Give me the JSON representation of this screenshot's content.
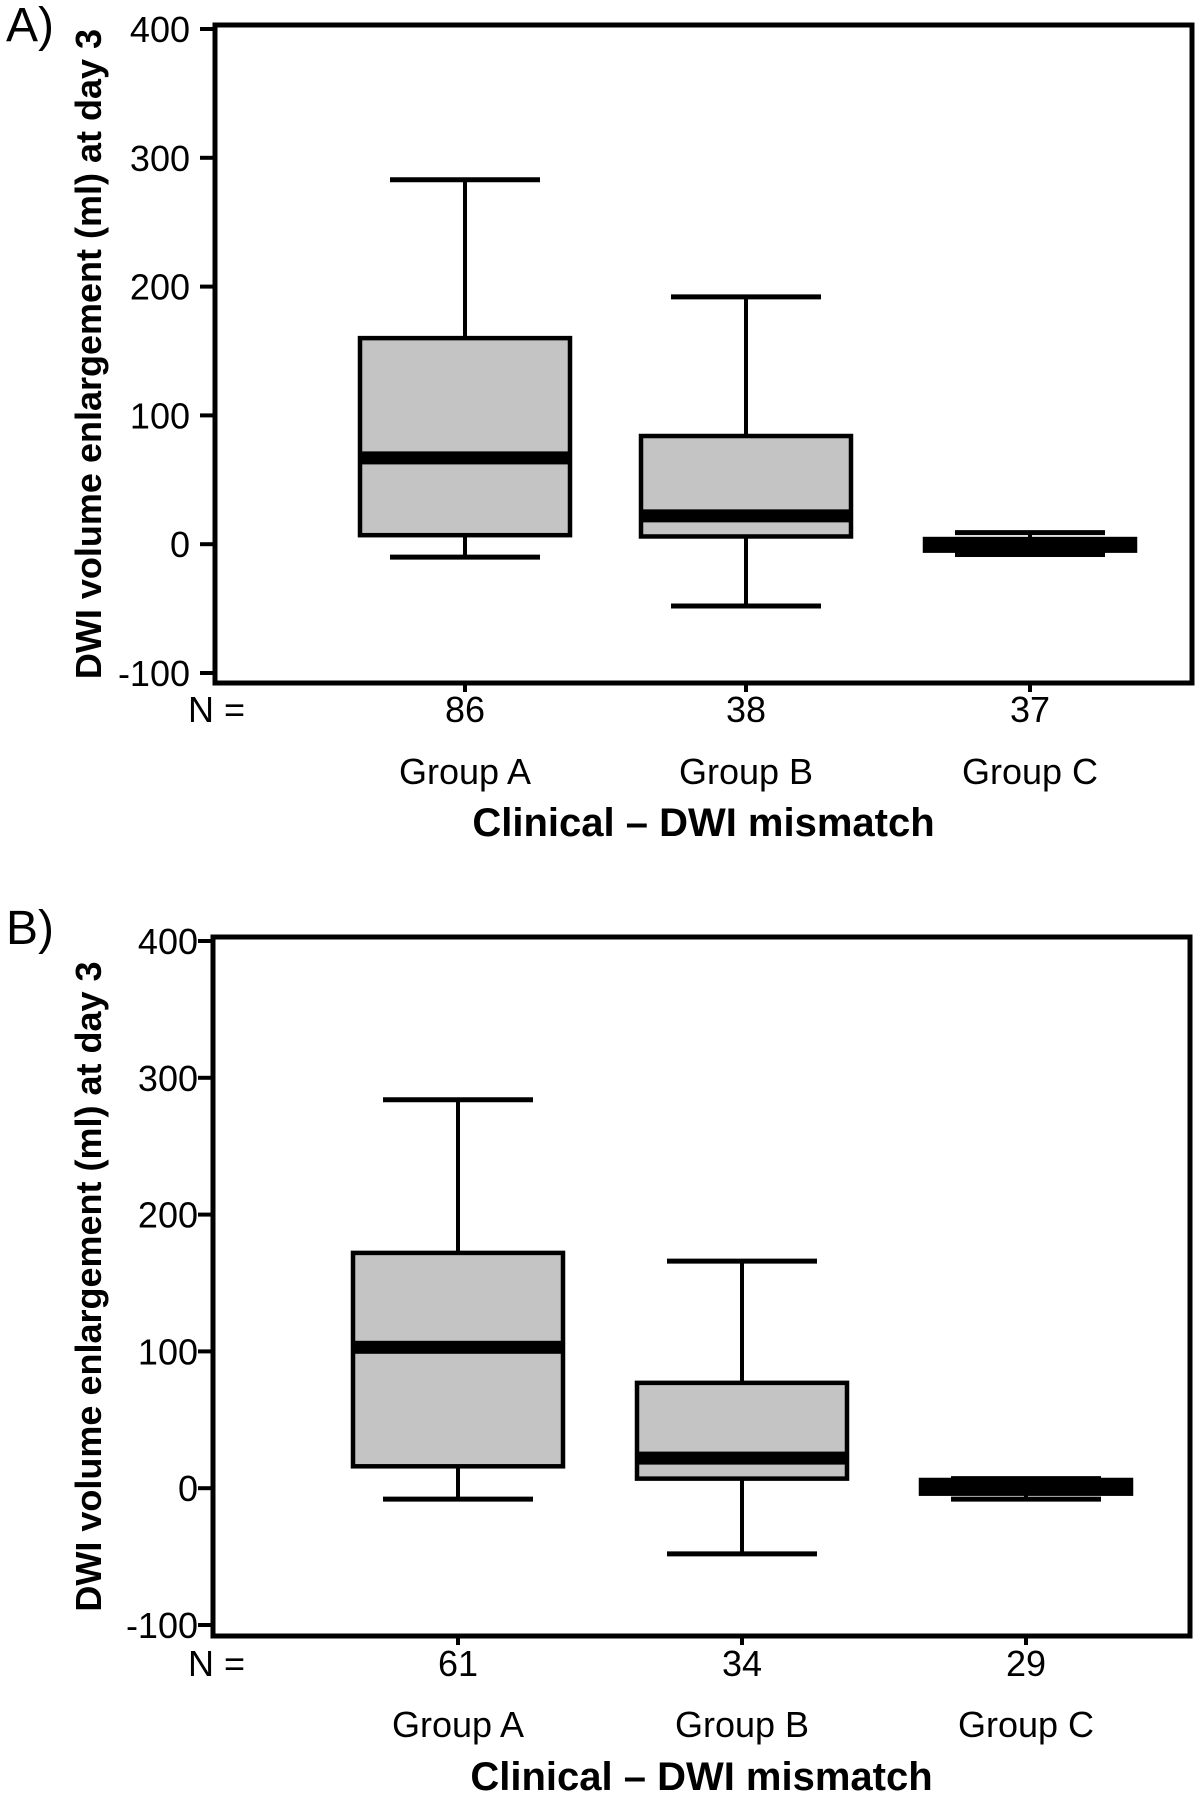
{
  "figure": {
    "panels": [
      {
        "label": "A)",
        "n_prefix": "N ="
      },
      {
        "label": "B)",
        "n_prefix": "N ="
      }
    ],
    "colors": {
      "box_fill": "#c4c4c4",
      "line": "#000000",
      "text": "#000000",
      "background": "#ffffff"
    }
  },
  "chart_data": [
    {
      "type": "boxplot",
      "panel": "A",
      "title": "Clinical – DWI mismatch",
      "ylabel": "DWI volume enlargement (ml) at day 3",
      "xlabel": "Clinical – DWI mismatch",
      "ylim": [
        -108,
        412
      ],
      "yticks": [
        400,
        300,
        200,
        100,
        0,
        -100
      ],
      "grid": false,
      "legend": null,
      "categories": [
        "Group A",
        "Group B",
        "Group C"
      ],
      "n_values": [
        86,
        38,
        37
      ],
      "series": [
        {
          "category": "Group A",
          "n": 86,
          "whisker_low": -10,
          "q1": 7,
          "median": 67,
          "q3": 160,
          "whisker_high": 283
        },
        {
          "category": "Group B",
          "n": 38,
          "whisker_low": -48,
          "q1": 6,
          "median": 22,
          "q3": 84,
          "whisker_high": 192
        },
        {
          "category": "Group C",
          "n": 37,
          "whisker_low": -8,
          "q1": -5,
          "median": 0,
          "q3": 4,
          "whisker_high": 9
        }
      ]
    },
    {
      "type": "boxplot",
      "panel": "B",
      "title": "Clinical – DWI mismatch",
      "ylabel": "DWI volume enlargement (ml) at day 3",
      "xlabel": "Clinical – DWI mismatch",
      "ylim": [
        -108,
        412
      ],
      "yticks": [
        400,
        300,
        200,
        100,
        0,
        -100
      ],
      "grid": false,
      "legend": null,
      "categories": [
        "Group A",
        "Group B",
        "Group C"
      ],
      "n_values": [
        61,
        34,
        29
      ],
      "series": [
        {
          "category": "Group A",
          "n": 61,
          "whisker_low": -8,
          "q1": 16,
          "median": 103,
          "q3": 172,
          "whisker_high": 284
        },
        {
          "category": "Group B",
          "n": 34,
          "whisker_low": -48,
          "q1": 7,
          "median": 22,
          "q3": 77,
          "whisker_high": 166
        },
        {
          "category": "Group C",
          "n": 29,
          "whisker_low": -8,
          "q1": -4,
          "median": 0,
          "q3": 6,
          "whisker_high": 7
        }
      ]
    }
  ]
}
